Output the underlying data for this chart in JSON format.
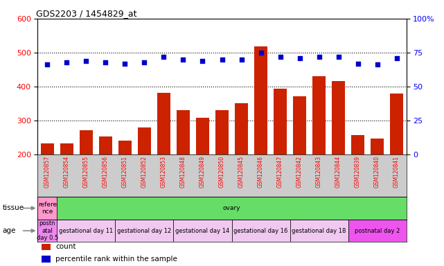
{
  "title": "GDS2203 / 1454829_at",
  "samples": [
    "GSM120857",
    "GSM120854",
    "GSM120855",
    "GSM120856",
    "GSM120851",
    "GSM120852",
    "GSM120853",
    "GSM120848",
    "GSM120849",
    "GSM120850",
    "GSM120845",
    "GSM120846",
    "GSM120847",
    "GSM120842",
    "GSM120843",
    "GSM120844",
    "GSM120839",
    "GSM120840",
    "GSM120841"
  ],
  "counts": [
    232,
    233,
    271,
    252,
    240,
    279,
    382,
    330,
    307,
    331,
    351,
    519,
    394,
    371,
    430,
    415,
    257,
    247,
    379
  ],
  "percentiles": [
    66,
    68,
    69,
    68,
    67,
    68,
    72,
    70,
    69,
    70,
    70,
    75,
    72,
    71,
    72,
    72,
    67,
    66,
    71
  ],
  "bar_color": "#cc2200",
  "dot_color": "#0000cc",
  "ylim_left": [
    200,
    600
  ],
  "ylim_right": [
    0,
    100
  ],
  "yticks_left": [
    200,
    300,
    400,
    500,
    600
  ],
  "yticks_right": [
    0,
    25,
    50,
    75,
    100
  ],
  "grid_lines": [
    300,
    400,
    500
  ],
  "tissue_row": {
    "label": "tissue",
    "groups": [
      {
        "text": "refere\nnce",
        "color": "#ff99cc",
        "n_bars": 1
      },
      {
        "text": "ovary",
        "color": "#66dd66",
        "n_bars": 18
      }
    ]
  },
  "age_row": {
    "label": "age",
    "groups": [
      {
        "text": "postn\natal\nday 0.5",
        "color": "#ee88ee",
        "n_bars": 1
      },
      {
        "text": "gestational day 11",
        "color": "#f0c8f0",
        "n_bars": 3
      },
      {
        "text": "gestational day 12",
        "color": "#f0c8f0",
        "n_bars": 3
      },
      {
        "text": "gestational day 14",
        "color": "#f0c8f0",
        "n_bars": 3
      },
      {
        "text": "gestational day 16",
        "color": "#f0c8f0",
        "n_bars": 3
      },
      {
        "text": "gestational day 18",
        "color": "#f0c8f0",
        "n_bars": 3
      },
      {
        "text": "postnatal day 2",
        "color": "#ee55ee",
        "n_bars": 3
      }
    ]
  },
  "legend_items": [
    {
      "color": "#cc2200",
      "label": "count"
    },
    {
      "color": "#0000cc",
      "label": "percentile rank within the sample"
    }
  ]
}
